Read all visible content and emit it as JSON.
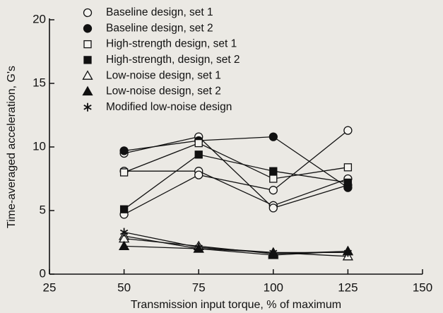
{
  "chart_data": {
    "type": "line",
    "x_label": "Transmission input torque, % of maximum",
    "y_label": "Time-averaged acceleration, G's",
    "x": [
      50,
      75,
      100,
      125
    ],
    "xlim": [
      25,
      150
    ],
    "xticks": [
      25,
      50,
      75,
      100,
      125,
      150
    ],
    "ylim": [
      0,
      20
    ],
    "yticks": [
      0,
      5,
      10,
      15,
      20
    ],
    "grid": false,
    "legend": "top",
    "series": [
      {
        "name": "Baseline design, set 1",
        "marker": "circle-open",
        "lines": [
          [
            8.1,
            8.1,
            5.4,
            7.5
          ],
          [
            4.7,
            7.8,
            6.6,
            11.3
          ],
          [
            9.5,
            10.8,
            5.2,
            7.0
          ]
        ]
      },
      {
        "name": "Baseline design, set 2",
        "marker": "circle-filled",
        "lines": [
          [
            9.7,
            10.5,
            10.8,
            6.8
          ]
        ]
      },
      {
        "name": "High-strength design, set 1",
        "marker": "square-open",
        "lines": [
          [
            8.0,
            10.3,
            7.5,
            8.4
          ]
        ]
      },
      {
        "name": "High-strength, design, set 2",
        "marker": "square-filled",
        "lines": [
          [
            5.1,
            9.4,
            8.1,
            7.2
          ]
        ]
      },
      {
        "name": "Low-noise design, set 1",
        "marker": "triangle-open",
        "lines": [
          [
            3.0,
            2.0,
            1.7,
            1.4
          ],
          [
            2.8,
            2.2,
            1.6,
            1.8
          ]
        ]
      },
      {
        "name": "Low-noise design, set 2",
        "marker": "triangle-filled",
        "lines": [
          [
            2.2,
            2.0,
            1.5,
            1.8
          ]
        ]
      },
      {
        "name": "Modified low-noise design",
        "marker": "asterisk",
        "lines": [
          [
            3.3,
            2.1,
            1.7,
            1.7
          ]
        ]
      }
    ]
  }
}
